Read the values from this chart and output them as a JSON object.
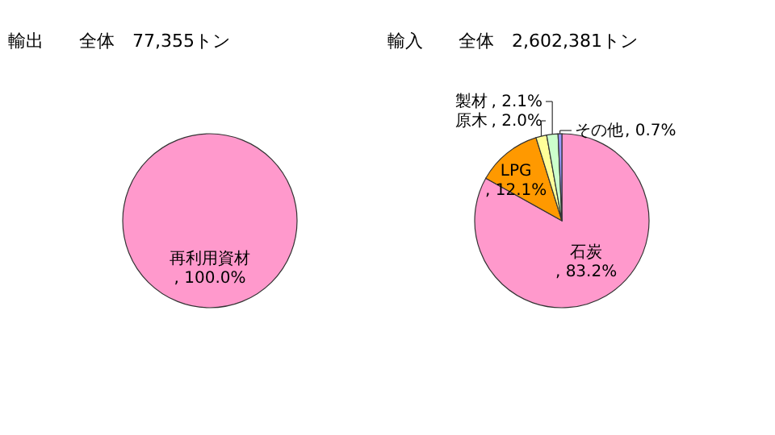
{
  "chart_data": [
    {
      "type": "pie",
      "title": "輸出　　全体　77,355トン",
      "categories": [
        "再利用資材"
      ],
      "values": [
        100.0
      ],
      "colors": [
        "#ff99cc"
      ],
      "data_labels": true,
      "value_labels": [
        ", 100.0%"
      ]
    },
    {
      "type": "pie",
      "title": "輸入　　全体　2,602,381トン",
      "categories": [
        "石炭",
        "LPG",
        "原木",
        "製材",
        "その他"
      ],
      "values": [
        83.2,
        12.1,
        2.0,
        2.1,
        0.7
      ],
      "colors": [
        "#ff99cc",
        "#ff9900",
        "#ffff99",
        "#ccffcc",
        "#9999ff"
      ],
      "data_labels": true,
      "value_labels": [
        ", 83.2%",
        ", 12.1%",
        ", 2.0%",
        ", 2.1%",
        ", 0.7%"
      ]
    }
  ]
}
